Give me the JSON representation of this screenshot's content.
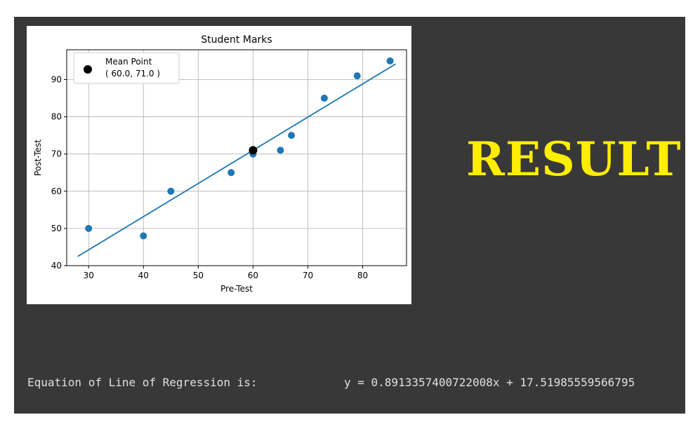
{
  "result_heading": "RESULT",
  "equation": {
    "label": "Equation of Line of Regression is:",
    "value": "y = 0.8913357400722008x + 17.51985559566795"
  },
  "colors": {
    "panel_bg": "#383838",
    "heading": "#ffee00",
    "series": "#1f77b4",
    "mean_point": "#000000",
    "console_text": "#e0e0e0"
  },
  "chart_data": {
    "type": "scatter",
    "title": "Student Marks",
    "xlabel": "Pre-Test",
    "ylabel": "Post-Test",
    "xlim": [
      26,
      88
    ],
    "ylim": [
      40,
      98
    ],
    "xticks": [
      30,
      40,
      50,
      60,
      70,
      80
    ],
    "yticks": [
      40,
      50,
      60,
      70,
      80,
      90
    ],
    "grid": true,
    "legend_position": "top-left",
    "points": [
      {
        "x": 30,
        "y": 50
      },
      {
        "x": 40,
        "y": 48
      },
      {
        "x": 45,
        "y": 60
      },
      {
        "x": 56,
        "y": 65
      },
      {
        "x": 60,
        "y": 70
      },
      {
        "x": 65,
        "y": 71
      },
      {
        "x": 67,
        "y": 75
      },
      {
        "x": 73,
        "y": 85
      },
      {
        "x": 79,
        "y": 91
      },
      {
        "x": 85,
        "y": 95
      }
    ],
    "regression_line": {
      "slope": 0.8913357400722008,
      "intercept": 17.51985559566795,
      "x_range": [
        28,
        86
      ]
    },
    "mean_point": {
      "x": 60.0,
      "y": 71.0,
      "label": "Mean Point\n( 60.0, 71.0 )"
    }
  }
}
